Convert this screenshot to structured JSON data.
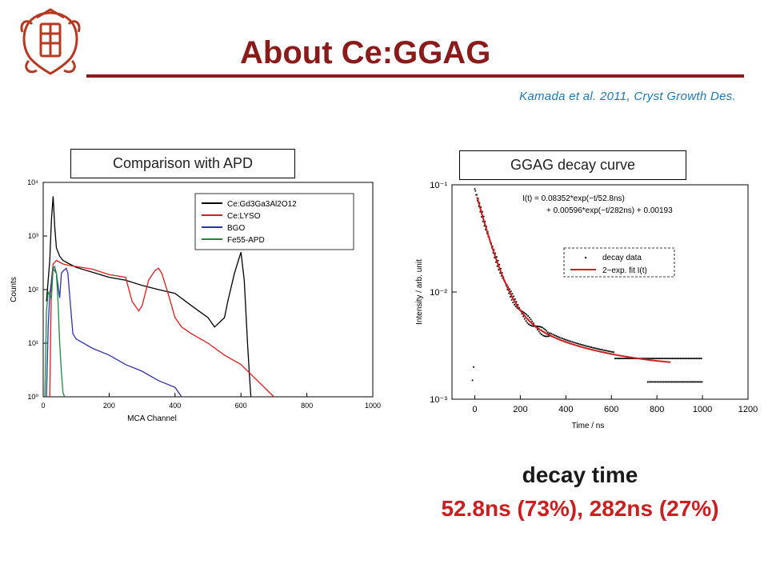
{
  "slide": {
    "title": "About Ce:GGAG",
    "citation": "Kamada et al. 2011,  Cryst Growth Des.",
    "logo_icon": "university-crest-icon",
    "accent_color": "#8b1a1a",
    "left_label": "Comparison with APD",
    "right_label": "GGAG decay curve",
    "decay_title": "decay time",
    "decay_values": "52.8ns (73%), 282ns (27%)"
  },
  "chart_data": [
    {
      "type": "line",
      "xlabel": "MCA Channel",
      "ylabel": "Counts",
      "xlim": [
        0,
        1000
      ],
      "ylim": [
        1,
        10000
      ],
      "yscale": "log",
      "x_ticks": [
        "0",
        "200",
        "400",
        "600",
        "800",
        "1000"
      ],
      "y_ticks": [
        "10⁰",
        "10¹",
        "10²",
        "10³",
        "10⁴"
      ],
      "legend_position": "top-right",
      "series": [
        {
          "name": "Ce:Gd3Ga3Al2O12",
          "color": "#000000",
          "x": [
            10,
            20,
            25,
            30,
            35,
            40,
            50,
            60,
            80,
            100,
            150,
            200,
            250,
            300,
            350,
            400,
            450,
            500,
            520,
            550,
            560,
            580,
            600,
            610,
            620,
            625,
            630
          ],
          "y": [
            60,
            350,
            2000,
            5500,
            1500,
            600,
            420,
            350,
            300,
            260,
            210,
            170,
            150,
            120,
            100,
            85,
            50,
            30,
            20,
            30,
            60,
            200,
            500,
            150,
            10,
            3,
            1
          ]
        },
        {
          "name": "Ce:LYSO",
          "color": "#e01b1b",
          "x": [
            20,
            25,
            30,
            40,
            60,
            80,
            100,
            150,
            200,
            250,
            270,
            290,
            300,
            320,
            340,
            350,
            360,
            380,
            400,
            420,
            450,
            500,
            550,
            600,
            650,
            700
          ],
          "y": [
            1,
            150,
            300,
            350,
            300,
            280,
            270,
            240,
            190,
            170,
            60,
            40,
            50,
            150,
            230,
            250,
            200,
            80,
            30,
            20,
            15,
            10,
            6,
            4,
            2,
            1
          ]
        },
        {
          "name": "BGO",
          "color": "#2b34a8",
          "x": [
            10,
            15,
            20,
            30,
            40,
            50,
            55,
            60,
            70,
            75,
            80,
            90,
            100,
            150,
            200,
            250,
            300,
            350,
            400,
            420
          ],
          "y": [
            1,
            20,
            80,
            250,
            200,
            70,
            200,
            220,
            250,
            200,
            80,
            15,
            12,
            8,
            6,
            4,
            3,
            2,
            1.5,
            1
          ]
        },
        {
          "name": "Fe55-APD",
          "color": "#1b8a3a",
          "x": [
            5,
            10,
            15,
            20,
            25,
            30,
            35,
            40,
            45,
            50,
            55,
            60,
            65
          ],
          "y": [
            1,
            40,
            90,
            80,
            70,
            250,
            270,
            200,
            60,
            10,
            3,
            1.2,
            1
          ]
        }
      ]
    },
    {
      "type": "scatter",
      "xlabel": "Time / ns",
      "ylabel": "Intensity / arb. unit",
      "xlim": [
        -100,
        1200
      ],
      "ylim": [
        0.001,
        0.1
      ],
      "yscale": "log",
      "x_ticks": [
        "0",
        "200",
        "400",
        "600",
        "800",
        "1000",
        "1200"
      ],
      "y_ticks": [
        "10⁻³",
        "10⁻²",
        "10⁻¹"
      ],
      "legend_position": "top-right",
      "annotation": {
        "line1": "I(t) = 0.08352*exp(−t/52.8ns)",
        "line2": "+ 0.00596*exp(−t/282ns) + 0.00193"
      },
      "series": [
        {
          "name": "decay data",
          "color": "#000000"
        },
        {
          "name": "2−exp. fit I(t)",
          "color": "#cc1e1e",
          "params": {
            "a1": 0.08352,
            "tau1": 52.8,
            "a2": 0.00596,
            "tau2": 282,
            "c": 0.00193,
            "t_range": [
              10,
              860
            ]
          }
        }
      ]
    }
  ]
}
